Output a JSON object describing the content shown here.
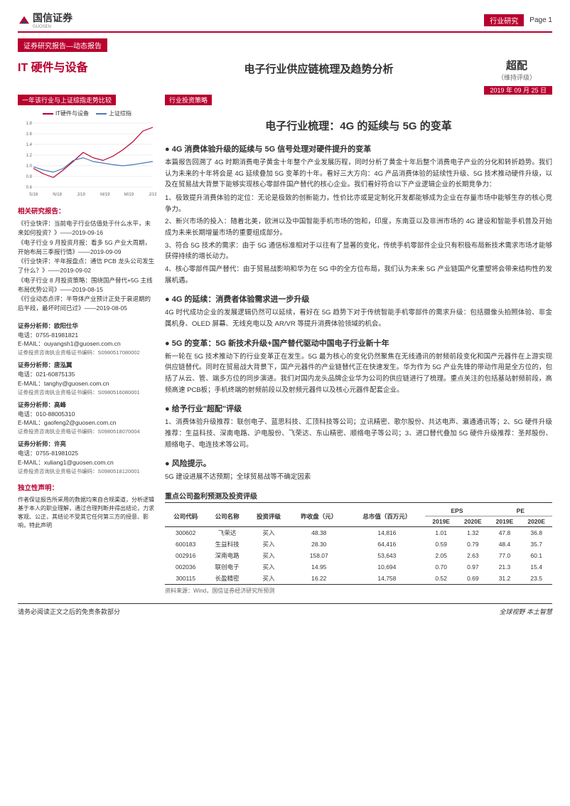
{
  "header": {
    "logo": "国信证券",
    "logo_en": "GUOSEN",
    "category": "行业研究",
    "page": "Page 1"
  },
  "subheader": "证券研究报告—动态报告",
  "sector": "IT 硬件与设备",
  "title": "电子行业供应链梳理及趋势分析",
  "rating": "超配",
  "rating_sub": "（维持评级）",
  "date": "2019 年 09 月 25 日",
  "left": {
    "chart_hdr": "一年该行业与上证综指走势比较",
    "chart": {
      "legend": [
        {
          "label": "IT硬件与设备",
          "color": "#b8002e"
        },
        {
          "label": "上证综指",
          "color": "#4a7ab8"
        }
      ],
      "xlabels": [
        "S/18",
        "N/18",
        "J/19",
        "M/19",
        "M/19",
        "J/19"
      ],
      "ylim": [
        0.6,
        1.8
      ],
      "yticks": [
        0.6,
        0.8,
        1.0,
        1.2,
        1.4,
        1.6,
        1.8
      ],
      "series": [
        {
          "color": "#b8002e",
          "points": [
            0.95,
            0.85,
            0.78,
            0.92,
            1.08,
            1.25,
            1.15,
            1.1,
            1.18,
            1.3,
            1.45,
            1.65,
            1.72
          ]
        },
        {
          "color": "#4a7ab8",
          "points": [
            0.98,
            0.92,
            0.88,
            0.95,
            1.1,
            1.15,
            1.08,
            1.05,
            1.02,
            1.0,
            1.02,
            1.05,
            1.08
          ]
        }
      ]
    },
    "reports_hdr": "相关研究报告：",
    "reports": [
      "《行业快评：当前电子行业估值处于什么水平，未来如何投资？》——2019-09-16",
      "《电子行业 9 月投资月报：看多 5G 产业大周期，开始布局三季报行情》——2019-09-09",
      "《行业快评：半年报盘点：通信 PCB 龙头公司发生了什么？》——2019-09-02",
      "《电子行业 8 月投资策略：围绕国产替代+5G 主线布局优势公司》——2019-08-15",
      "《行业动态点评：半导体产业预计正处于衰退期的后半段，最坏时间已过》——2019-08-05"
    ],
    "analysts": [
      {
        "title": "证券分析师：欧阳仕华",
        "phone": "电话：0755-81981821",
        "email": "E-MAIL：ouyangsh1@guosen.com.cn",
        "cert": "证券投资咨询执业资格证书编码：S0980517080002"
      },
      {
        "title": "证券分析师：唐泓翼",
        "phone": "电话：021-60875135",
        "email": "E-MAIL：tanghy@guosen.com.cn",
        "cert": "证券投资咨询执业资格证书编码：S0980516080001"
      },
      {
        "title": "证券分析师：高峰",
        "phone": "电话：010-88005310",
        "email": "E-MAIL：gaofeng2@guosen.com.cn",
        "cert": "证券投资咨询执业资格证书编码：S0980518070004"
      },
      {
        "title": "证券分析师：许亮",
        "phone": "电话：0755-81981025",
        "email": "E-MAIL：xuliang1@guosen.com.cn",
        "cert": "证券投资咨询执业资格证书编码：S0980518120001"
      }
    ],
    "disclaimer_hdr": "独立性声明：",
    "disclaimer": "作者保证报告所采用的数据均来自合规渠道，分析逻辑基于本人的职业理解，通过合理判断并得出结论，力求客观、公正，其结论不受其它任何第三方的授意、影响，特此声明"
  },
  "right": {
    "strategy_hdr": "行业投资策略",
    "theme": "电子行业梳理：4G 的延续与 5G 的变革",
    "sections": [
      {
        "title": "4G 消费体验升级的延续与 5G 信号处理对硬件提升的变革",
        "body": "本篇报告回溯了 4G 时期消费电子黄金十年整个产业发展历程，同时分析了黄金十年后整个消费电子产业的分化和转折趋势。我们认为未来的十年将会是 4G 延续叠加 5G 变革的十年。看好三大方向：4G 产品消费体验的延续性升级、5G 技术推动硬件升级，以及在贸易战大背景下能够实现核心零部件国产替代的核心企业。我们看好符合以下产业逻辑企业的长期竞争力：",
        "items": [
          "1、极致提升消费体验的定位：无论是极致的创新能力，性价比亦或是定制化开发都能够成为企业在存量市场中能够生存的核心竞争力。",
          "2、新兴市场的投入：随着北美，欧洲以及中国智能手机市场的饱和，印度，东南亚以及非洲市场的 4G 建设和智能手机普及开始成为未来长期增量市场的重要组成部分。",
          "3、符合 5G 技术的需求：由于 5G 通信标准相对于以往有了显著的变化，传统手机零部件企业只有积极布局新技术需求市场才能够获得持续的增长动力。",
          "4、核心零部件国产替代：由于贸易战影响和华为在 5G 中的全方位布局，我们认为未来 5G 产业链国产化重塑将会带来结构性的发展机遇。"
        ]
      },
      {
        "title": "4G 的延续：消费者体验需求进一步升级",
        "body": "4G 时代成功企业的发展逻辑仍然可以延续，看好在 5G 趋势下对于传统智能手机零部件的需求升级：包括摄像头拍照体验、非金属机身、OLED 屏幕、无线充电以及 AR/VR 等提升消费体验领域的机会。"
      },
      {
        "title": "5G 的变革：5G 新技术升级+国产替代驱动中国电子行业新十年",
        "body": "新一轮在 5G 技术推动下的行业变革正在发生。5G 最为核心的变化仍然聚焦在无线通讯的射频前段变化和国产元器件在上游实现供应链替代。同时在贸易战大背景下，国产元器件的产业链替代正在快速发生。华为作为 5G 产业先锋的带动作用是全方位的，包括了从云、管、端多方位的同步演进。我们对国内龙头品牌企业华为公司的供应链进行了梳理。重点关注的包括基站射频前段，高频高速 PCB板；手机终端的射频前段以及射频元器件以及核心元器件配套企业。"
      },
      {
        "title": "给予行业\"超配\"评级",
        "body": "1、消费体验升级推荐：联创电子、蓝思科技、汇顶科技等公司；立讯精密、歌尔股份、共达电声、瀛通通讯等；2、5G 硬件升级推荐：生益科技、深南电路、沪电股份、飞荣达、东山精密、顺络电子等公司；3、进口替代叠加 5G 硬件升级推荐：圣邦股份、顺络电子、电连技术等公司。"
      },
      {
        "title": "风险提示。",
        "body": "5G 建设进展不达预期；全球贸易战等不确定因素"
      }
    ],
    "table_hdr": "重点公司盈利预测及投资评级",
    "table": {
      "headers": [
        "公司代码",
        "公司名称",
        "投资评级",
        "昨收盘（元）",
        "总市值（百万元）",
        "2019E",
        "2020E",
        "2019E",
        "2020E"
      ],
      "grp": [
        "",
        "",
        "",
        "",
        "",
        "EPS",
        "",
        "PE",
        ""
      ],
      "rows": [
        [
          "300602",
          "飞荣达",
          "买入",
          "48.38",
          "14,816",
          "1.01",
          "1.32",
          "47.8",
          "36.8"
        ],
        [
          "600183",
          "生益科技",
          "买入",
          "28.30",
          "64,416",
          "0.59",
          "0.79",
          "48.4",
          "35.7"
        ],
        [
          "002916",
          "深南电路",
          "买入",
          "158.07",
          "53,643",
          "2.05",
          "2.63",
          "77.0",
          "60.1"
        ],
        [
          "002036",
          "联创电子",
          "买入",
          "14.95",
          "10,694",
          "0.70",
          "0.97",
          "21.3",
          "15.4"
        ],
        [
          "300115",
          "长盈精密",
          "买入",
          "16.22",
          "14,758",
          "0.52",
          "0.69",
          "31.2",
          "23.5"
        ]
      ]
    },
    "table_src": "资料来源：Wind，国信证券经济研究所预测"
  },
  "footer": {
    "left": "请务必阅读正文之后的免责条款部分",
    "right": "全球视野  本土智慧"
  }
}
